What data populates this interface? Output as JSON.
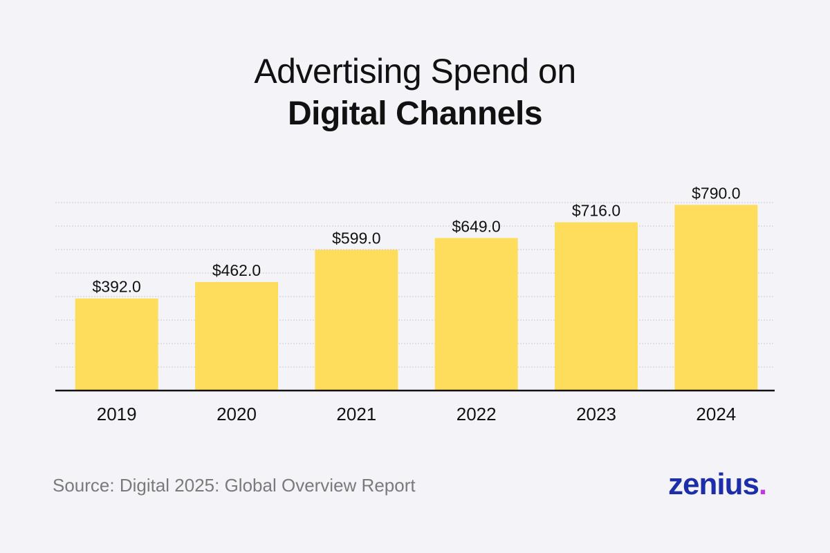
{
  "title": {
    "line1": "Advertising Spend on",
    "line2": "Digital Channels"
  },
  "chart_data": {
    "type": "bar",
    "categories": [
      "2019",
      "2020",
      "2021",
      "2022",
      "2023",
      "2024"
    ],
    "values": [
      392.0,
      462.0,
      599.0,
      649.0,
      716.0,
      790.0
    ],
    "value_labels": [
      "$392.0",
      "$462.0",
      "$599.0",
      "$649.0",
      "$716.0",
      "$790.0"
    ],
    "ylim": [
      0,
      1000
    ],
    "grid": true,
    "legend": "none",
    "title": "Advertising Spend on Digital Channels",
    "xlabel": "",
    "ylabel": ""
  },
  "source": "Source: Digital 2025: Global Overview Report",
  "brand": {
    "word": "zenius",
    "dot": "."
  },
  "colors": {
    "bar": "#ffdd5c",
    "baseline": "#111111",
    "grid": "#c8c8d0",
    "brand": "#1c2fa8",
    "brand_dot": "#c13ae0"
  }
}
